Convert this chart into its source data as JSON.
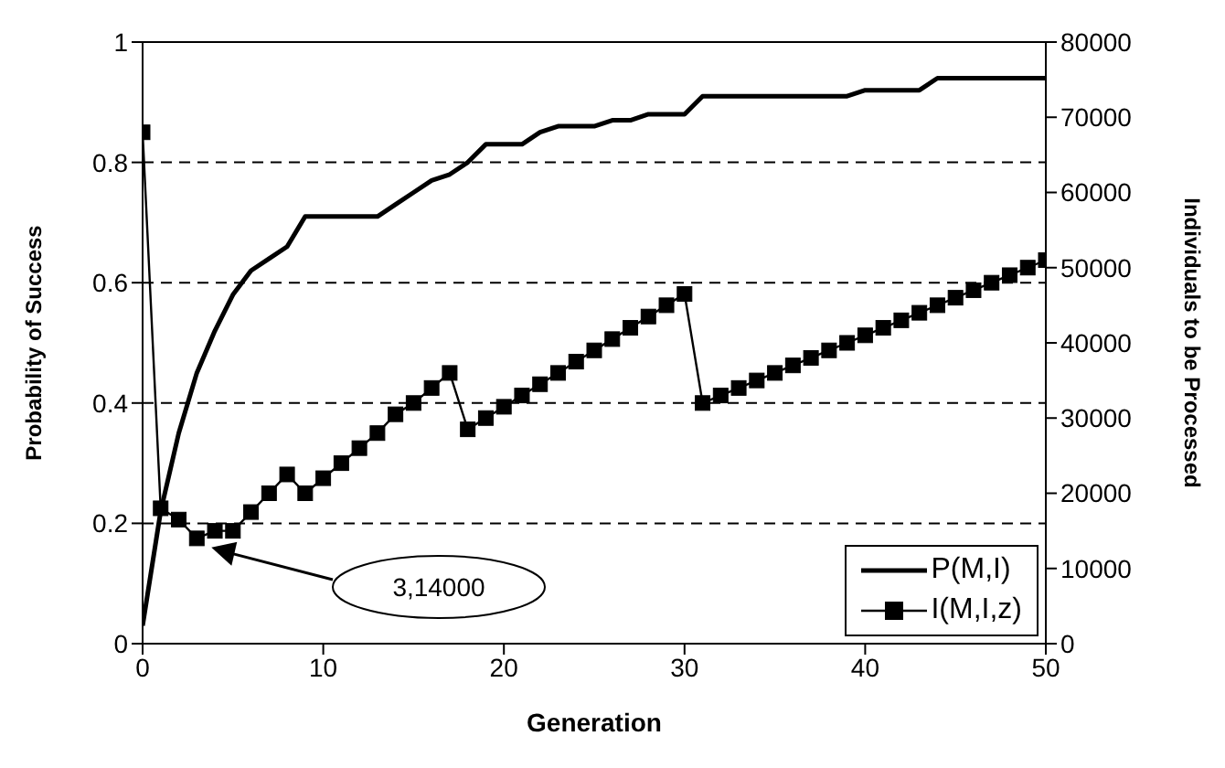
{
  "chart_data": {
    "type": "line",
    "xlabel": "Generation",
    "ylabel": "Probability of Success",
    "y2label": "Individuals to be Processed",
    "x": [
      0,
      1,
      2,
      3,
      4,
      5,
      6,
      7,
      8,
      9,
      10,
      11,
      12,
      13,
      14,
      15,
      16,
      17,
      18,
      19,
      20,
      21,
      22,
      23,
      24,
      25,
      26,
      27,
      28,
      29,
      30,
      31,
      32,
      33,
      34,
      35,
      36,
      37,
      38,
      39,
      40,
      41,
      42,
      43,
      44,
      45,
      46,
      47,
      48,
      49,
      50
    ],
    "series": [
      {
        "name": "P(M,I)",
        "color": "#000000",
        "marker": "none",
        "values": [
          0.03,
          0.22,
          0.35,
          0.45,
          0.52,
          0.58,
          0.62,
          0.64,
          0.66,
          0.71,
          0.71,
          0.71,
          0.71,
          0.71,
          0.73,
          0.75,
          0.77,
          0.78,
          0.8,
          0.83,
          0.83,
          0.83,
          0.85,
          0.86,
          0.86,
          0.86,
          0.87,
          0.87,
          0.88,
          0.88,
          0.88,
          0.91,
          0.91,
          0.91,
          0.91,
          0.91,
          0.91,
          0.91,
          0.91,
          0.91,
          0.92,
          0.92,
          0.92,
          0.92,
          0.94,
          0.94,
          0.94,
          0.94,
          0.94,
          0.94,
          0.94
        ]
      },
      {
        "name": "I(M,I,z)",
        "color": "#000000",
        "marker": "square",
        "axis": "y2",
        "values": [
          68000,
          18000,
          16500,
          14000,
          15000,
          15000,
          17500,
          20000,
          22500,
          20000,
          22000,
          24000,
          26000,
          28000,
          30500,
          32000,
          34000,
          36000,
          28500,
          30000,
          31500,
          33000,
          34500,
          36000,
          37500,
          39000,
          40500,
          42000,
          43500,
          45000,
          46500,
          32000,
          33000,
          34000,
          35000,
          36000,
          37000,
          38000,
          39000,
          40000,
          41000,
          42000,
          43000,
          44000,
          45000,
          46000,
          47000,
          48000,
          49000,
          50000,
          51000
        ]
      }
    ],
    "xlim": [
      0,
      50
    ],
    "xticks": [
      0,
      10,
      20,
      30,
      40,
      50
    ],
    "ylim": [
      0,
      1
    ],
    "yticks": [
      0,
      0.2,
      0.4,
      0.6,
      0.8,
      1
    ],
    "y2lim": [
      0,
      80000
    ],
    "y2ticks": [
      0,
      10000,
      20000,
      30000,
      40000,
      50000,
      60000,
      70000,
      80000
    ],
    "grid": "y",
    "legend": "bottom right",
    "annotations": [
      "3,14000"
    ]
  }
}
